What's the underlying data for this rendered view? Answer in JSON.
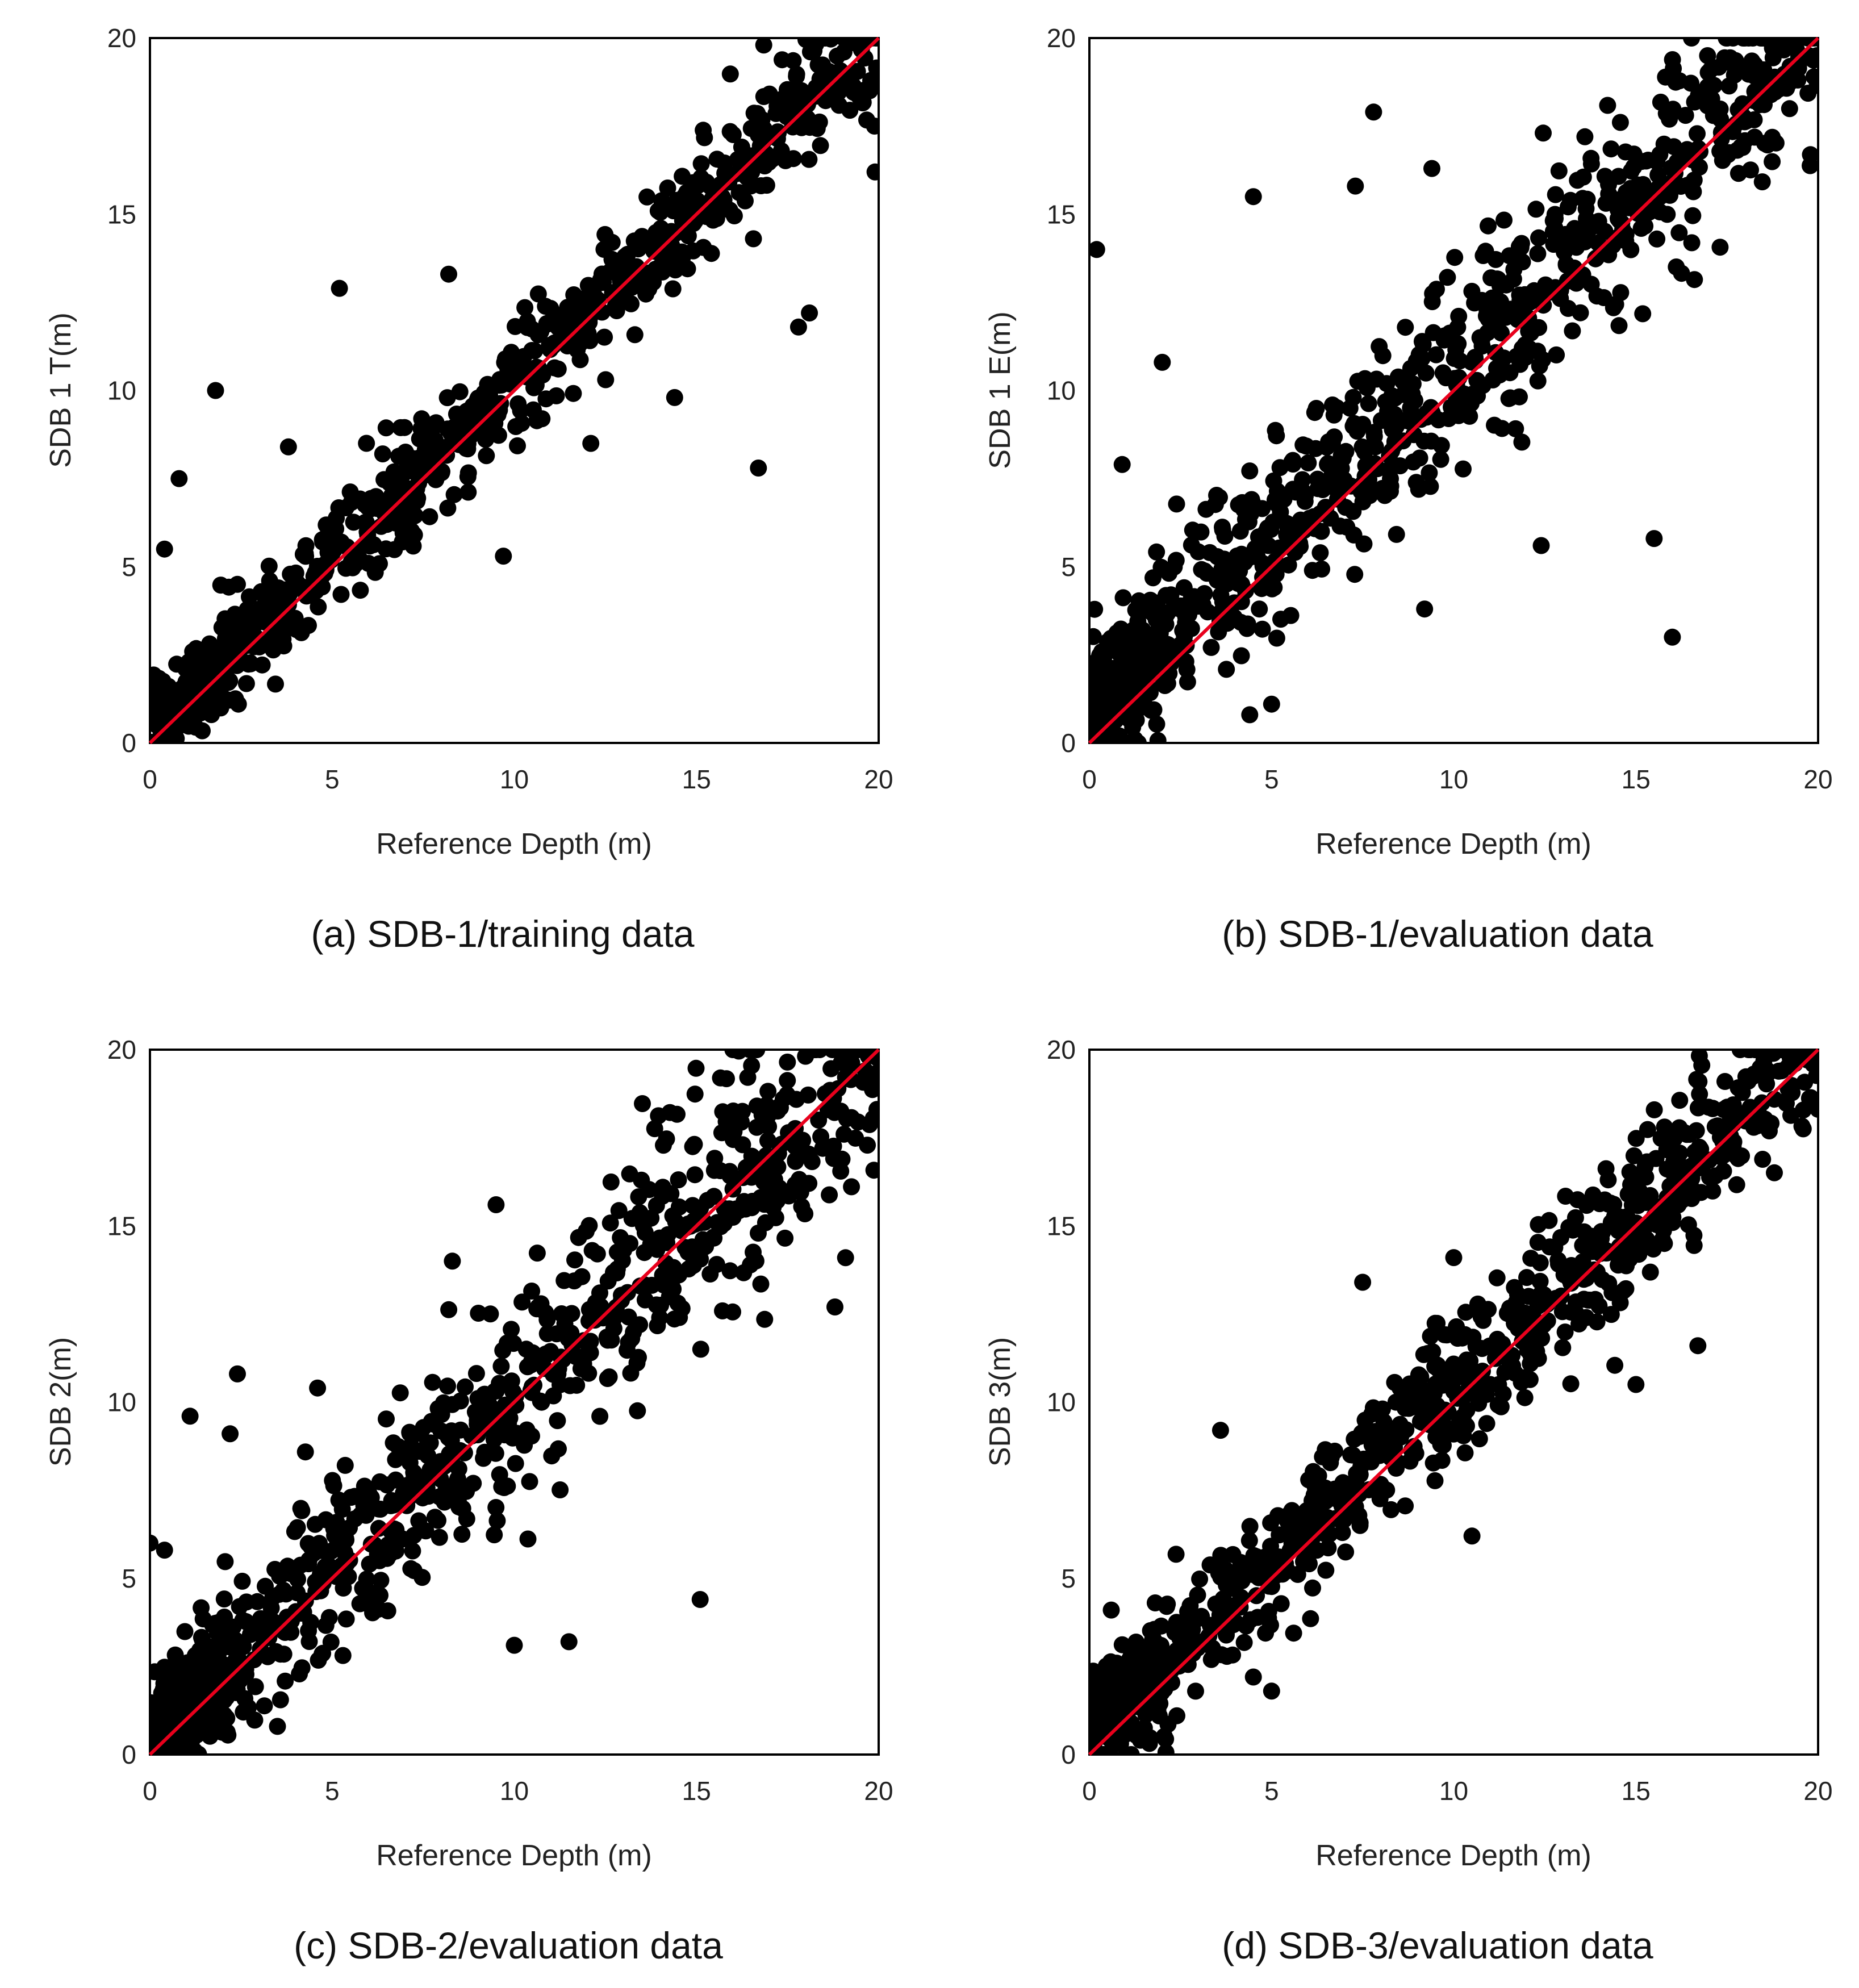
{
  "chart_data": [
    {
      "id": "a",
      "type": "scatter",
      "caption": "(a) SDB-1/training data",
      "xlabel": "Reference Depth (m)",
      "ylabel": "SDB 1 T(m)",
      "xlim": [
        0,
        20
      ],
      "ylim": [
        0,
        20
      ],
      "xticks": [
        "0",
        "5",
        "10",
        "15",
        "20"
      ],
      "yticks": [
        "0",
        "5",
        "10",
        "15",
        "20"
      ],
      "grid": false,
      "reference_line": {
        "x": [
          0,
          20
        ],
        "y": [
          0,
          20
        ],
        "color": "#e8001c"
      },
      "marker_color": "#000000",
      "scatter_pattern": {
        "n": 850,
        "seed": 11,
        "sigma_low": 0.6,
        "sigma_high": 1.0,
        "bias": 0.35
      },
      "x": [
        0.8,
        1.8,
        5.2,
        16.7,
        18.1,
        0.4,
        3.8,
        9.7,
        14.4,
        17.8,
        19.9,
        8.2,
        2.4,
        12.1
      ],
      "y": [
        7.5,
        10.0,
        12.9,
        7.8,
        12.2,
        5.5,
        8.4,
        5.3,
        9.8,
        11.8,
        16.2,
        13.3,
        4.5,
        8.5
      ]
    },
    {
      "id": "b",
      "type": "scatter",
      "caption": "(b) SDB-1/evaluation data",
      "xlabel": "Reference Depth (m)",
      "ylabel": "SDB 1 E(m)",
      "xlim": [
        0,
        20
      ],
      "ylim": [
        0,
        20
      ],
      "xticks": [
        "0",
        "5",
        "10",
        "15",
        "20"
      ],
      "yticks": [
        "0",
        "5",
        "10",
        "15",
        "20"
      ],
      "grid": false,
      "reference_line": {
        "x": [
          0,
          20
        ],
        "y": [
          0,
          20
        ],
        "color": "#e8001c"
      },
      "marker_color": "#000000",
      "scatter_pattern": {
        "n": 950,
        "seed": 23,
        "sigma_low": 1.0,
        "sigma_high": 1.7,
        "bias": 0.9
      },
      "x": [
        0.2,
        4.5,
        7.8,
        7.3,
        9.4,
        2.0,
        16.0,
        15.5,
        9.2,
        12.4,
        5.0,
        4.4,
        0.9
      ],
      "y": [
        14.0,
        15.5,
        17.9,
        15.8,
        16.3,
        10.8,
        3.0,
        5.8,
        3.8,
        5.6,
        1.1,
        0.8,
        7.9
      ]
    },
    {
      "id": "c",
      "type": "scatter",
      "caption": "(c) SDB-2/evaluation data",
      "xlabel": "Reference Depth (m)",
      "ylabel": "SDB 2(m)",
      "xlim": [
        0,
        20
      ],
      "ylim": [
        0,
        20
      ],
      "xticks": [
        "0",
        "5",
        "10",
        "15",
        "20"
      ],
      "yticks": [
        "0",
        "5",
        "10",
        "15",
        "20"
      ],
      "grid": false,
      "reference_line": {
        "x": [
          0,
          20
        ],
        "y": [
          0,
          20
        ],
        "color": "#e8001c"
      },
      "marker_color": "#000000",
      "scatter_pattern": {
        "n": 950,
        "seed": 37,
        "sigma_low": 1.0,
        "sigma_high": 1.8,
        "bias": 0.4
      },
      "x": [
        0.0,
        0.4,
        1.1,
        2.4,
        2.2,
        4.6,
        8.3,
        9.5,
        10.0,
        11.5,
        15.1,
        16.0,
        3.5,
        18.8
      ],
      "y": [
        6.0,
        5.8,
        9.6,
        10.8,
        9.1,
        10.4,
        14.0,
        15.6,
        3.1,
        3.2,
        4.4,
        20.0,
        0.8,
        12.7
      ]
    },
    {
      "id": "d",
      "type": "scatter",
      "caption": "(d) SDB-3/evaluation data",
      "xlabel": "Reference Depth (m)",
      "ylabel": "SDB 3(m)",
      "xlim": [
        0,
        20
      ],
      "ylim": [
        0,
        20
      ],
      "xticks": [
        "0",
        "5",
        "10",
        "15",
        "20"
      ],
      "yticks": [
        "0",
        "5",
        "10",
        "15",
        "20"
      ],
      "grid": false,
      "reference_line": {
        "x": [
          0,
          20
        ],
        "y": [
          0,
          20
        ],
        "color": "#e8001c"
      },
      "marker_color": "#000000",
      "scatter_pattern": {
        "n": 950,
        "seed": 53,
        "sigma_low": 0.8,
        "sigma_high": 1.2,
        "bias": 0.6
      },
      "x": [
        0.6,
        3.6,
        5.0,
        4.5,
        10.5,
        10.0,
        7.5,
        15.0,
        0.2,
        18.3,
        16.7,
        2.4
      ],
      "y": [
        4.1,
        9.2,
        1.8,
        2.2,
        6.2,
        14.1,
        13.4,
        10.5,
        0.8,
        20.0,
        11.6,
        1.1
      ]
    }
  ]
}
